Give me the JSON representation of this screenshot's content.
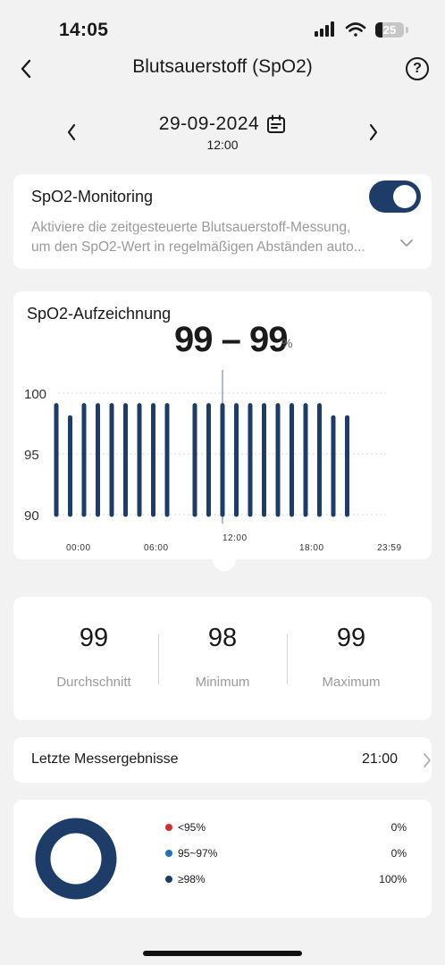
{
  "status_bar": {
    "time": "14:05",
    "battery": "25",
    "battery_level": 0.25
  },
  "header": {
    "title": "Blutsauerstoff (SpO2)",
    "help": "?"
  },
  "date_nav": {
    "date": "29-09-2024",
    "time": "12:00"
  },
  "monitoring": {
    "title": "SpO2-Monitoring",
    "toggle_on": true,
    "description_line1": "Aktiviere die zeitgesteuerte Blutsauerstoff-Messung,",
    "description_line2": "um den SpO2-Wert in regelmäßigen Abständen auto..."
  },
  "chart_card": {
    "title": "SpO2-Aufzeichnung",
    "range": "99 – 99",
    "unit": "%"
  },
  "chart_data": {
    "type": "bar",
    "x_ticks": [
      "00:00",
      "06:00",
      "12:00",
      "18:00",
      "23:59"
    ],
    "y_ticks": [
      90,
      95,
      100
    ],
    "ylim": [
      90,
      100
    ],
    "xlim_hours": [
      0,
      24
    ],
    "selected_hour": 12,
    "bar_color": "#1d3d68",
    "bars": [
      {
        "hour": 0,
        "value": 99
      },
      {
        "hour": 1,
        "value": 98
      },
      {
        "hour": 2,
        "value": 99
      },
      {
        "hour": 3,
        "value": 99
      },
      {
        "hour": 4,
        "value": 99
      },
      {
        "hour": 5,
        "value": 99
      },
      {
        "hour": 6,
        "value": 99
      },
      {
        "hour": 7,
        "value": 99
      },
      {
        "hour": 8,
        "value": 99
      },
      {
        "hour": 10,
        "value": 99
      },
      {
        "hour": 11,
        "value": 99
      },
      {
        "hour": 12,
        "value": 99
      },
      {
        "hour": 13,
        "value": 99
      },
      {
        "hour": 14,
        "value": 99
      },
      {
        "hour": 15,
        "value": 99
      },
      {
        "hour": 16,
        "value": 99
      },
      {
        "hour": 17,
        "value": 99
      },
      {
        "hour": 18,
        "value": 99
      },
      {
        "hour": 19,
        "value": 99
      },
      {
        "hour": 20,
        "value": 98
      },
      {
        "hour": 21,
        "value": 98
      }
    ]
  },
  "stats": {
    "avg_value": "99",
    "avg_label": "Durchschnitt",
    "min_value": "98",
    "min_label": "Minimum",
    "max_value": "99",
    "max_label": "Maximum"
  },
  "last_result": {
    "label": "Letzte Messergebnisse",
    "time": "21:00"
  },
  "distribution": {
    "items": [
      {
        "label": "<95%",
        "percent": "0%",
        "color": "#d82c34",
        "share": 0
      },
      {
        "label": "95~97%",
        "percent": "0%",
        "color": "#1f73b8",
        "share": 0
      },
      {
        "label": "≥98%",
        "percent": "100%",
        "color": "#1d3d68",
        "share": 1
      }
    ]
  }
}
